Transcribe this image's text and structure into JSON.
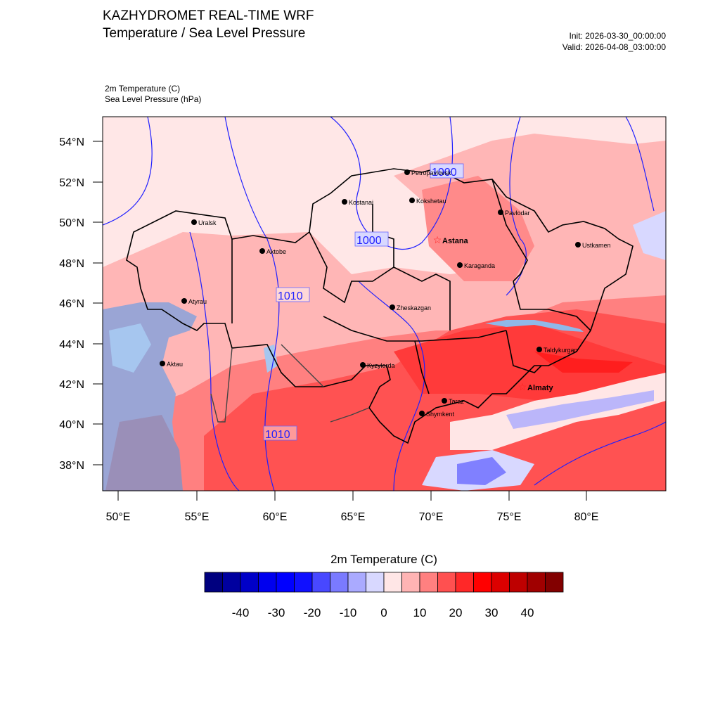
{
  "header": {
    "title_line1": "KAZHYDROMET REAL-TIME WRF",
    "title_line2": "Temperature / Sea Level Pressure",
    "init": "Init: 2026-03-30_00:00:00",
    "valid": "Valid: 2026-04-08_03:00:00"
  },
  "variables": {
    "temp": "2m Temperature   (C)",
    "slp": "Sea Level Pressure   (hPa)"
  },
  "map": {
    "lat_labels": [
      "54°N",
      "52°N",
      "50°N",
      "48°N",
      "46°N",
      "44°N",
      "42°N",
      "40°N",
      "38°N"
    ],
    "lon_labels": [
      "50°E",
      "55°E",
      "60°E",
      "65°E",
      "70°E",
      "75°E",
      "80°E"
    ],
    "cities": [
      {
        "name": "Petropavlovsk",
        "capital": false
      },
      {
        "name": "Kostanai",
        "capital": false
      },
      {
        "name": "Kokshetau",
        "capital": false
      },
      {
        "name": "Uralsk",
        "capital": false
      },
      {
        "name": "Pavlodar",
        "capital": false
      },
      {
        "name": "Aktobe",
        "capital": false
      },
      {
        "name": "Astana",
        "capital": true
      },
      {
        "name": "Ustkamen",
        "capital": false
      },
      {
        "name": "Karaganda",
        "capital": false
      },
      {
        "name": "Atyrau",
        "capital": false
      },
      {
        "name": "Zheskazgan",
        "capital": false
      },
      {
        "name": "Taldykurgan",
        "capital": false
      },
      {
        "name": "Aktau",
        "capital": false
      },
      {
        "name": "Kyzylorda",
        "capital": false
      },
      {
        "name": "Almaty",
        "capital": true
      },
      {
        "name": "Taraz",
        "capital": false
      },
      {
        "name": "Shymkent",
        "capital": false
      }
    ],
    "isobar_labels": [
      "1000",
      "1000",
      "1010",
      "1010"
    ]
  },
  "colorbar": {
    "title": "2m Temperature  (C)",
    "tick_labels": [
      "-40",
      "-30",
      "-20",
      "-10",
      "0",
      "10",
      "20",
      "30",
      "40"
    ],
    "colors": [
      "#00007f",
      "#00009f",
      "#0000c8",
      "#0000ee",
      "#0000ff",
      "#1010ff",
      "#4848ff",
      "#7a7aff",
      "#aaaaff",
      "#d8d8ff",
      "#ffe6e6",
      "#ffb4b4",
      "#ff8080",
      "#ff5050",
      "#ff2828",
      "#ff0000",
      "#dc0000",
      "#be0000",
      "#a00000",
      "#820000"
    ]
  }
}
